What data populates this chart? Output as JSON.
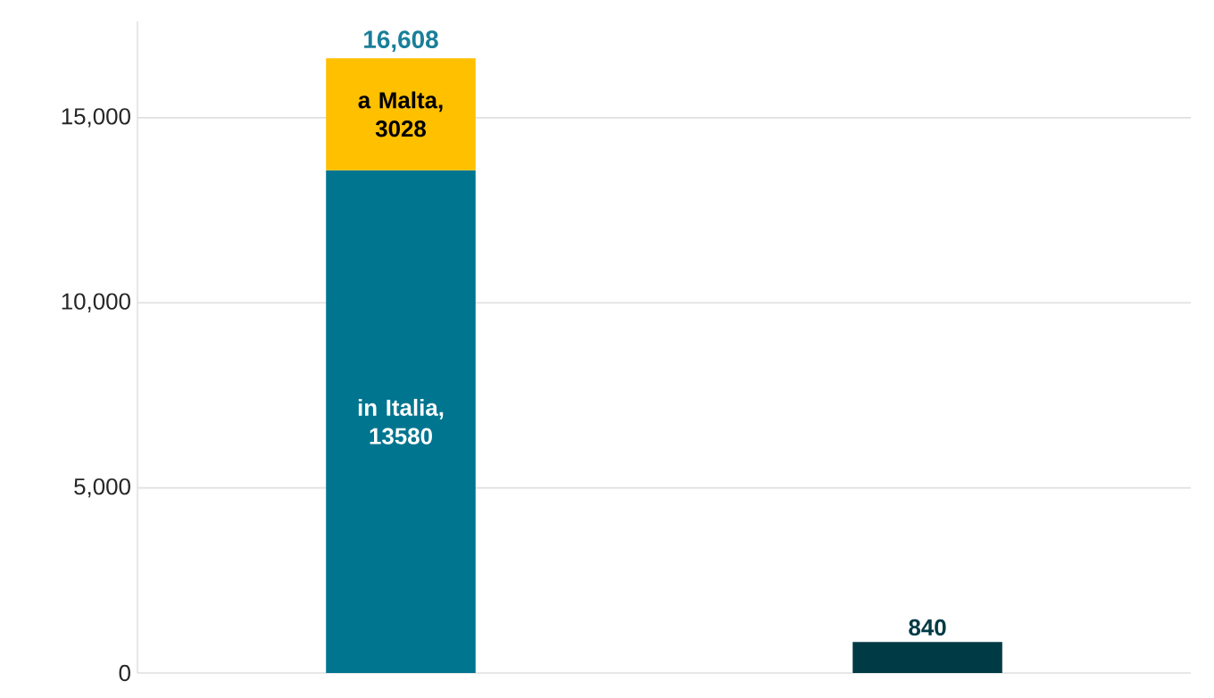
{
  "chart_data": {
    "type": "bar",
    "stacked": true,
    "categories": [
      null,
      null
    ],
    "series": [
      {
        "color": "#00758f",
        "values": [
          13580,
          null
        ],
        "value_labels": [
          "in Italia, 13580",
          null
        ]
      },
      {
        "color": "#ffc000",
        "values": [
          3028,
          null
        ],
        "value_labels": [
          "a Malta, 3028",
          null
        ]
      },
      {
        "color": "#003a45",
        "values": [
          null,
          840
        ],
        "value_labels": [
          null,
          "840"
        ]
      }
    ],
    "totals": [
      "16,608",
      null
    ],
    "ylim": [
      0,
      17600
    ],
    "yticks": [
      0,
      {
        "value": 5000,
        "label": "5,000"
      },
      {
        "value": 10000,
        "label": "10,000"
      },
      {
        "value": 15000,
        "label": "15,000"
      }
    ],
    "grid": "y"
  }
}
